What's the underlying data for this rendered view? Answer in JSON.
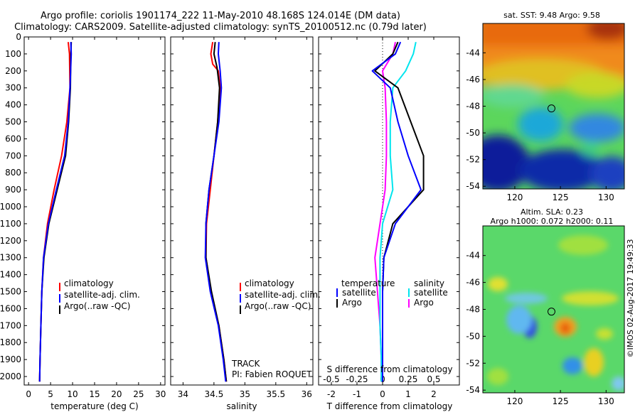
{
  "header": {
    "title_line1": "Argo profile: coriolis 1901174_222 11-May-2010 48.168S 124.014E (DM data)",
    "title_line2": "Climatology: CARS2009. Satellite-adjusted climatology: synTS_20100512.nc (0.79d later)"
  },
  "depth_ticks": [
    0,
    100,
    200,
    300,
    400,
    500,
    600,
    700,
    800,
    900,
    1000,
    1100,
    1200,
    1300,
    1400,
    1500,
    1600,
    1700,
    1800,
    1900,
    2000
  ],
  "legend": {
    "climatology": "climatology",
    "satellite_adj": "satellite-adj. clim.",
    "argo": "Argo(..raw -QC)"
  },
  "colors": {
    "climatology": "#ff0000",
    "satellite": "#0000ff",
    "argo": "#000000",
    "temp_sat": "#0000ff",
    "sal_sat": "#00e5ee",
    "sal_argo": "#ff00ff"
  },
  "charts": {
    "temperature": {
      "xlabel": "temperature (deg C)",
      "xlim": [
        -1,
        31
      ],
      "xticks": [
        0,
        5,
        10,
        15,
        20,
        25,
        30
      ],
      "ylim": [
        0,
        2050
      ],
      "series": {
        "climatology": [
          [
            9.0,
            30
          ],
          [
            9.3,
            100
          ],
          [
            9.4,
            300
          ],
          [
            8.7,
            500
          ],
          [
            7.5,
            700
          ],
          [
            5.8,
            900
          ],
          [
            4.3,
            1100
          ],
          [
            3.4,
            1300
          ],
          [
            3.0,
            1500
          ],
          [
            2.8,
            1700
          ],
          [
            2.6,
            1900
          ],
          [
            2.5,
            2030
          ]
        ],
        "satellite": [
          [
            9.6,
            30
          ],
          [
            9.7,
            100
          ],
          [
            9.4,
            300
          ],
          [
            9.0,
            500
          ],
          [
            8.2,
            700
          ],
          [
            6.3,
            900
          ],
          [
            4.5,
            1100
          ],
          [
            3.4,
            1300
          ],
          [
            3.0,
            1500
          ],
          [
            2.8,
            1700
          ],
          [
            2.6,
            1900
          ],
          [
            2.5,
            2030
          ]
        ],
        "argo": [
          [
            9.7,
            30
          ],
          [
            9.6,
            100
          ],
          [
            9.5,
            300
          ],
          [
            9.1,
            500
          ],
          [
            8.4,
            700
          ],
          [
            6.5,
            900
          ],
          [
            4.6,
            1100
          ],
          [
            3.5,
            1300
          ],
          [
            3.0,
            1500
          ],
          [
            2.8,
            1700
          ],
          [
            2.6,
            1900
          ],
          [
            2.5,
            2030
          ]
        ]
      }
    },
    "salinity": {
      "xlabel": "salinity",
      "xlim": [
        33.8,
        36.1
      ],
      "xticks": [
        34,
        34.5,
        35,
        35.5,
        36
      ],
      "ylim": [
        0,
        2050
      ],
      "series": {
        "climatology": [
          [
            34.48,
            30
          ],
          [
            34.45,
            100
          ],
          [
            34.48,
            160
          ],
          [
            34.57,
            200
          ],
          [
            34.6,
            300
          ],
          [
            34.56,
            500
          ],
          [
            34.5,
            700
          ],
          [
            34.44,
            900
          ],
          [
            34.38,
            1100
          ],
          [
            34.37,
            1300
          ],
          [
            34.45,
            1500
          ],
          [
            34.58,
            1700
          ],
          [
            34.66,
            1900
          ],
          [
            34.7,
            2030
          ]
        ],
        "satellite": [
          [
            34.58,
            30
          ],
          [
            34.57,
            100
          ],
          [
            34.6,
            200
          ],
          [
            34.62,
            300
          ],
          [
            34.58,
            500
          ],
          [
            34.5,
            700
          ],
          [
            34.42,
            900
          ],
          [
            34.37,
            1100
          ],
          [
            34.36,
            1300
          ],
          [
            34.44,
            1500
          ],
          [
            34.57,
            1700
          ],
          [
            34.65,
            1900
          ],
          [
            34.69,
            2030
          ]
        ],
        "argo": [
          [
            34.52,
            30
          ],
          [
            34.5,
            100
          ],
          [
            34.55,
            180
          ],
          [
            34.59,
            300
          ],
          [
            34.56,
            500
          ],
          [
            34.5,
            700
          ],
          [
            34.42,
            900
          ],
          [
            34.37,
            1100
          ],
          [
            34.37,
            1300
          ],
          [
            34.46,
            1500
          ],
          [
            34.58,
            1700
          ],
          [
            34.66,
            1900
          ],
          [
            34.7,
            2030
          ]
        ]
      },
      "annotation_track": "TRACK",
      "annotation_pi": "PI: Fabien ROQUET"
    },
    "difference": {
      "xlabel": "T difference from climatology",
      "s_label": "S difference from climatology",
      "xlim": [
        -2.5,
        3
      ],
      "xticks": [
        -2,
        -1,
        0,
        1,
        2
      ],
      "s_ticks": [
        "-0.5",
        "-0.25",
        "0",
        "0.25",
        "0.5"
      ],
      "ylim": [
        0,
        2050
      ],
      "temp_series": {
        "satellite": [
          [
            0.7,
            30
          ],
          [
            0.5,
            100
          ],
          [
            -0.4,
            200
          ],
          [
            0.3,
            300
          ],
          [
            0.6,
            500
          ],
          [
            1.0,
            700
          ],
          [
            1.5,
            900
          ],
          [
            0.5,
            1100
          ],
          [
            0.05,
            1300
          ],
          [
            0.0,
            1500
          ],
          [
            0.0,
            1700
          ],
          [
            0.0,
            1900
          ],
          [
            0.0,
            2030
          ]
        ],
        "argo": [
          [
            0.6,
            30
          ],
          [
            0.4,
            100
          ],
          [
            -0.3,
            200
          ],
          [
            0.6,
            300
          ],
          [
            1.1,
            500
          ],
          [
            1.6,
            700
          ],
          [
            1.6,
            900
          ],
          [
            0.4,
            1100
          ],
          [
            0.05,
            1300
          ],
          [
            0.0,
            1500
          ],
          [
            0.0,
            1700
          ],
          [
            0.0,
            1900
          ],
          [
            0.0,
            2030
          ]
        ]
      },
      "sal_series": {
        "satellite": [
          [
            1.3,
            30
          ],
          [
            1.2,
            100
          ],
          [
            0.9,
            200
          ],
          [
            0.4,
            300
          ],
          [
            0.3,
            500
          ],
          [
            0.3,
            700
          ],
          [
            0.4,
            900
          ],
          [
            0.0,
            1100
          ],
          [
            -0.1,
            1300
          ],
          [
            -0.1,
            1500
          ],
          [
            -0.1,
            1700
          ],
          [
            -0.05,
            1900
          ],
          [
            -0.05,
            2030
          ]
        ],
        "argo": [
          [
            0.5,
            30
          ],
          [
            0.4,
            100
          ],
          [
            0.0,
            200
          ],
          [
            0.1,
            300
          ],
          [
            0.15,
            500
          ],
          [
            0.15,
            700
          ],
          [
            0.1,
            900
          ],
          [
            -0.1,
            1100
          ],
          [
            -0.3,
            1300
          ],
          [
            -0.2,
            1500
          ],
          [
            -0.1,
            1700
          ],
          [
            -0.05,
            1900
          ],
          [
            -0.05,
            2030
          ]
        ]
      },
      "legend_temperature": "temperature",
      "legend_salinity": "salinity",
      "legend_satellite": "satellite",
      "legend_argo": "Argo"
    }
  },
  "maps": {
    "sst": {
      "title": "sat. SST: 9.48 Argo: 9.58",
      "xticks": [
        120,
        125,
        130
      ],
      "yticks": [
        -44,
        -46,
        -48,
        -50,
        -52,
        -54
      ],
      "xlim": [
        116.5,
        132
      ],
      "ylim": [
        -54.2,
        -41.8
      ],
      "marker": [
        124.014,
        -48.168
      ]
    },
    "sla": {
      "title_line1": "Altim. SLA: 0.23",
      "title_line2": "Argo h1000: 0.072 h2000: 0.11",
      "xticks": [
        120,
        125,
        130
      ],
      "yticks": [
        -44,
        -46,
        -48,
        -50,
        -52,
        -54
      ],
      "xlim": [
        116.5,
        132
      ],
      "ylim": [
        -54.2,
        -41.8
      ],
      "marker": [
        124.014,
        -48.168
      ]
    }
  },
  "footer": {
    "credit": "©IMOS 02-Aug-2017 19:49:33"
  }
}
